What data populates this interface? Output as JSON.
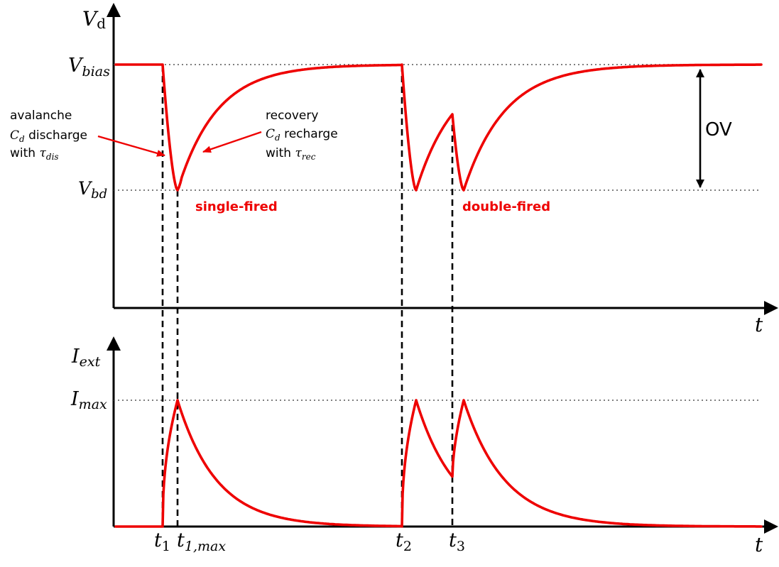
{
  "top_panel": {
    "y_axis_label": {
      "main": "V",
      "sub": "d"
    },
    "x_axis_label": "t",
    "v_bias": {
      "main": "V",
      "sub": "bias"
    },
    "v_bd": {
      "main": "V",
      "sub": "bd"
    },
    "ov_label": "OV",
    "single_fired_label": "single-fired",
    "double_fired_label": "double-fired",
    "avalanche_annotation": {
      "line1": "avalanche",
      "line2_symbol": "C",
      "line2_symbol_sub": "d",
      "line2_text": " discharge",
      "line3_text": "with ",
      "line3_symbol": "τ",
      "line3_symbol_sub": "dis"
    },
    "recovery_annotation": {
      "line1": "recovery",
      "line2_symbol": "C",
      "line2_symbol_sub": "d",
      "line2_text": " recharge",
      "line3_text": "with ",
      "line3_symbol": "τ",
      "line3_symbol_sub": "rec"
    }
  },
  "bottom_panel": {
    "y_axis_label": {
      "main": "I",
      "sub": "ext"
    },
    "x_axis_label": "t",
    "i_max": {
      "main": "I",
      "sub": "max"
    },
    "time_markers": [
      {
        "main": "t",
        "sub": "1"
      },
      {
        "main": "t",
        "sub": "1,max"
      },
      {
        "main": "t",
        "sub": "2"
      },
      {
        "main": "t",
        "sub": "3"
      }
    ]
  },
  "colors": {
    "signal": "#ee0000",
    "axis": "#000000",
    "guide": "#555555"
  }
}
